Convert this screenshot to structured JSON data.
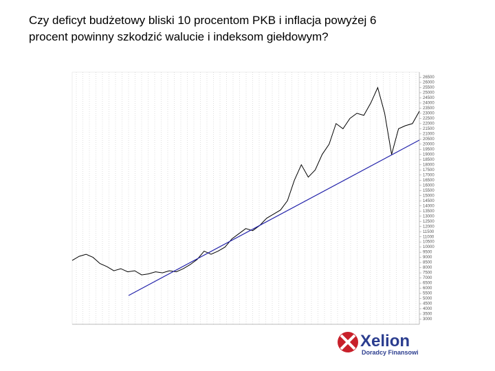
{
  "chart_data": {
    "type": "line",
    "title": "Czy deficyt budżetowy bliski 10 procentom PKB i inflacja powyżej 6 procent powinny szkodzić walucie i indeksom giełdowym?",
    "series": [
      {
        "color": "#000000",
        "values": [
          8700,
          9100,
          9300,
          9000,
          8400,
          8100,
          7700,
          7900,
          7600,
          7700,
          7300,
          7400,
          7600,
          7500,
          7700,
          7600,
          7900,
          8300,
          8800,
          9600,
          9300,
          9600,
          10000,
          10800,
          11300,
          11800,
          11600,
          12100,
          12800,
          13200,
          13600,
          14500,
          16500,
          18000,
          16800,
          17500,
          19000,
          20000,
          22000,
          21500,
          22500,
          23000,
          22800,
          24000,
          25500,
          23000,
          19000,
          21500,
          21800,
          22000,
          23200
        ]
      },
      {
        "color": "#2222aa",
        "values": [
          5300,
          20400
        ]
      }
    ],
    "ylim": [
      2500,
      27000
    ],
    "yticks": [
      3000,
      3500,
      4000,
      4500,
      5000,
      5500,
      6000,
      6500,
      7000,
      7500,
      8000,
      8500,
      9000,
      9500,
      10000,
      10500,
      11000,
      11500,
      12000,
      12500,
      13000,
      13500,
      14000,
      14500,
      15000,
      15500,
      16000,
      16500,
      17000,
      17500,
      18000,
      18500,
      19000,
      19500,
      20000,
      20500,
      21000,
      21500,
      22000,
      22500,
      23000,
      23500,
      24000,
      24500,
      25000,
      25500,
      26000,
      26500
    ],
    "grid": true
  },
  "logo": {
    "name": "Xelion",
    "tagline": "Doradcy Finansowi"
  }
}
